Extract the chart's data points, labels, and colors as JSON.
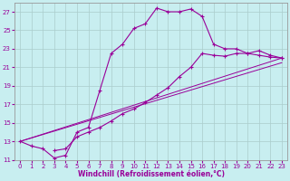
{
  "xlabel": "Windchill (Refroidissement éolien,°C)",
  "bg_color": "#c8eef0",
  "line_color": "#990099",
  "grid_color": "#aacccc",
  "xlim": [
    -0.5,
    23.5
  ],
  "ylim": [
    11,
    28
  ],
  "xticks": [
    0,
    1,
    2,
    3,
    4,
    5,
    6,
    7,
    8,
    9,
    10,
    11,
    12,
    13,
    14,
    15,
    16,
    17,
    18,
    19,
    20,
    21,
    22,
    23
  ],
  "yticks": [
    11,
    13,
    15,
    17,
    19,
    21,
    23,
    25,
    27
  ],
  "line1_x": [
    0,
    1,
    2,
    3,
    4,
    5,
    6,
    7,
    8,
    9,
    10,
    11,
    12,
    13,
    14,
    15,
    16,
    17,
    18,
    19,
    20,
    21,
    22,
    23
  ],
  "line1_y": [
    13,
    12.5,
    12.2,
    11.2,
    11.5,
    14.0,
    14.5,
    18.5,
    22.5,
    23.5,
    25.2,
    25.7,
    27.4,
    27.0,
    27.0,
    27.3,
    26.5,
    23.5,
    23.0,
    23.0,
    22.5,
    22.3,
    22.1,
    22.0
  ],
  "line2_x": [
    0,
    23
  ],
  "line2_y": [
    13.0,
    22.0
  ],
  "line3_x": [
    0,
    23
  ],
  "line3_y": [
    13.0,
    21.5
  ],
  "line4_x": [
    3,
    4,
    5,
    6,
    7,
    8,
    9,
    10,
    11,
    12,
    13,
    14,
    15,
    16,
    17,
    18,
    19,
    20,
    21,
    22,
    23
  ],
  "line4_y": [
    12.0,
    12.2,
    13.5,
    14.0,
    14.5,
    15.2,
    16.0,
    16.5,
    17.2,
    18.0,
    18.8,
    20.0,
    21.0,
    22.5,
    22.3,
    22.2,
    22.5,
    22.5,
    22.8,
    22.3,
    22.0
  ]
}
